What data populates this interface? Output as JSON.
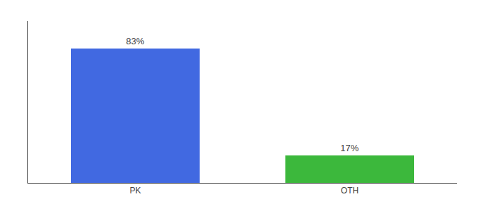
{
  "chart_data": {
    "type": "bar",
    "categories": [
      "PK",
      "OTH"
    ],
    "values": [
      83,
      17
    ],
    "colors": [
      "#4169E1",
      "#3CB83C"
    ],
    "value_labels": [
      "83%",
      "17%"
    ],
    "data_labels": true,
    "ylim": [
      0,
      100
    ],
    "yticks": [],
    "tick_labels": "x",
    "grid": false
  }
}
